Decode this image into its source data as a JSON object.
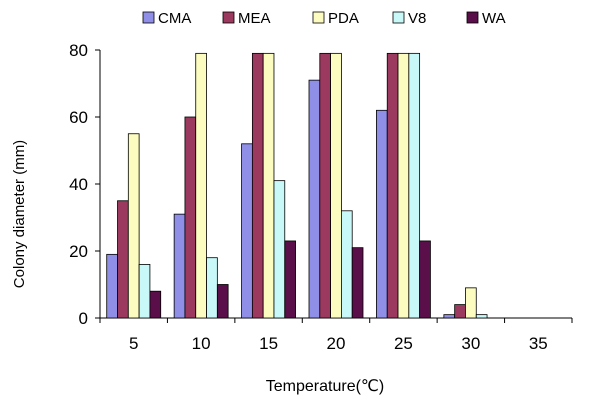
{
  "chart_data": {
    "type": "bar",
    "xlabel": "Temperature(℃)",
    "ylabel": "Colony diameter  (mm)",
    "categories": [
      "5",
      "10",
      "15",
      "20",
      "25",
      "30",
      "35"
    ],
    "ylim": [
      0,
      80
    ],
    "yticks": [
      0,
      20,
      40,
      60,
      80
    ],
    "grid": false,
    "legend": "top",
    "series": [
      {
        "name": "CMA",
        "color": "#8f8fe8",
        "values": [
          19,
          31,
          52,
          71,
          62,
          1,
          0
        ]
      },
      {
        "name": "MEA",
        "color": "#9b3a5e",
        "values": [
          35,
          60,
          79,
          79,
          79,
          4,
          0
        ]
      },
      {
        "name": "PDA",
        "color": "#fcfcc0",
        "values": [
          55,
          79,
          79,
          79,
          79,
          9,
          0
        ]
      },
      {
        "name": "V8",
        "color": "#c8f8f8",
        "values": [
          16,
          18,
          41,
          32,
          79,
          1,
          0
        ]
      },
      {
        "name": "WA",
        "color": "#5a0f4a",
        "values": [
          8,
          10,
          23,
          21,
          23,
          0,
          0
        ]
      }
    ]
  }
}
